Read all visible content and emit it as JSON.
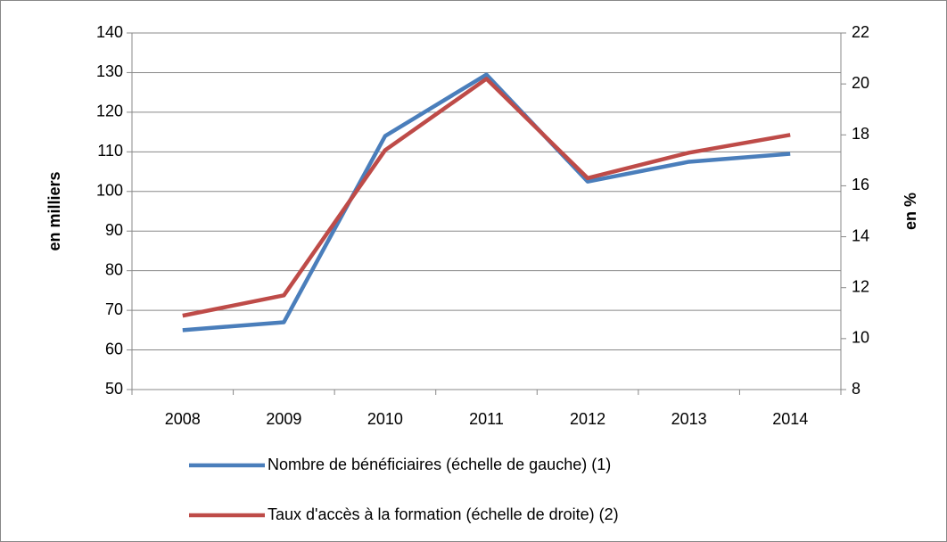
{
  "chart_data": {
    "type": "line",
    "categories": [
      "2008",
      "2009",
      "2010",
      "2011",
      "2012",
      "2013",
      "2014"
    ],
    "series": [
      {
        "name": "Nombre de bénéficiaires (échelle de gauche) (1)",
        "color": "#4a7ebb",
        "values": [
          65,
          67,
          114,
          129.5,
          102.5,
          107.5,
          109.5
        ]
      },
      {
        "name": "Taux d'accès à la formation (échelle de droite) (2)",
        "color": "#be4b48",
        "axis": "y2",
        "values": [
          10.9,
          11.7,
          17.4,
          20.2,
          16.3,
          17.3,
          18
        ]
      }
    ],
    "ylabel": "en milliers",
    "y2label": "en %",
    "ylim": [
      50,
      140
    ],
    "yticks": [
      50,
      60,
      70,
      80,
      90,
      100,
      110,
      120,
      130,
      140
    ],
    "y2lim": [
      8,
      22
    ],
    "y2ticks": [
      8,
      10,
      12,
      14,
      16,
      18,
      20,
      22
    ],
    "grid": true,
    "legend": "bottom"
  }
}
